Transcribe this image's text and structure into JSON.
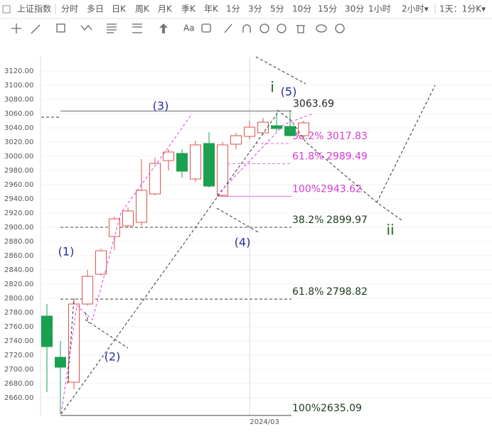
{
  "toolbar": {
    "symbol": "上证指数",
    "periods": [
      "分时",
      "多日",
      "日K",
      "周K",
      "月K",
      "季K",
      "年K",
      "1分",
      "3分",
      "5分",
      "10分",
      "15分",
      "30分",
      "1小时",
      "2小时▾"
    ],
    "active": "日K",
    "interval": "1天：1分K▾",
    "text_tool": "Aa"
  },
  "chart_data": {
    "type": "candlestick",
    "categories": [
      null,
      null,
      null,
      null,
      null,
      null,
      null,
      null,
      null,
      null,
      null,
      null,
      null,
      null,
      null,
      "2024/03",
      null,
      null,
      null,
      null
    ],
    "open": [
      2775,
      2717,
      2682,
      2792,
      2834,
      2887,
      2902,
      2907,
      2947,
      2994,
      3004,
      2968,
      3018,
      2945,
      3017,
      3028,
      3033,
      3043,
      3042,
      3029
    ],
    "close": [
      2732,
      2703,
      2792,
      2831,
      2867,
      2912,
      2923,
      2952,
      2990,
      3006,
      2979,
      3016,
      2958,
      3016,
      3029,
      3041,
      3048,
      3039,
      3029,
      3047
    ],
    "high": [
      2792,
      2740,
      2800,
      2840,
      2870,
      2915,
      2928,
      2996,
      2998,
      3010,
      3010,
      3022,
      3034,
      3020,
      3033,
      3050,
      3054,
      3062,
      3065,
      3050
    ],
    "low": [
      2668,
      2637,
      2672,
      2790,
      2832,
      2868,
      2900,
      2902,
      2945,
      2980,
      2970,
      2964,
      2956,
      2943,
      3010,
      3024,
      3030,
      3035,
      3028,
      3024
    ],
    "up_color": "#d9534f",
    "down_color": "#1aa050",
    "ylim": [
      2635,
      3140
    ],
    "yticks": [
      {
        "value": 2660,
        "label": "2660.00"
      },
      {
        "value": 2680,
        "label": "2680.00"
      },
      {
        "value": 2700,
        "label": "2700.00"
      },
      {
        "value": 2720,
        "label": "2720.00"
      },
      {
        "value": 2740,
        "label": "2740.00"
      },
      {
        "value": 2760,
        "label": "2760.00"
      },
      {
        "value": 2780,
        "label": "2780.00"
      },
      {
        "value": 2800,
        "label": "2800.00"
      },
      {
        "value": 2820,
        "label": "2820.00"
      },
      {
        "value": 2840,
        "label": "2840.00"
      },
      {
        "value": 2860,
        "label": "2860.00"
      },
      {
        "value": 2880,
        "label": "2880.00"
      },
      {
        "value": 2900,
        "label": "2900.00"
      },
      {
        "value": 2920,
        "label": "2920.00"
      },
      {
        "value": 2940,
        "label": "2940.00"
      },
      {
        "value": 2960,
        "label": "2960.00"
      },
      {
        "value": 2980,
        "label": "2980.00"
      },
      {
        "value": 3000,
        "label": "3000.00"
      },
      {
        "value": 3020,
        "label": "3020.00"
      },
      {
        "value": 3040,
        "label": "3040.00"
      },
      {
        "value": 3060,
        "label": "3060.00"
      },
      {
        "value": 3080,
        "label": "3080.00"
      },
      {
        "value": 3100,
        "label": "3100.00"
      },
      {
        "value": 3120,
        "label": "3120.00"
      }
    ],
    "levels": [
      {
        "ratio": null,
        "value": 3063.69,
        "color": "#222222",
        "line": "#666666"
      },
      {
        "ratio": "38.2%",
        "value": 3017.83,
        "color": "#d63ad6",
        "line": "#e070e0"
      },
      {
        "ratio": "61.8%",
        "value": 2989.49,
        "color": "#d63ad6",
        "line": "#e070e0"
      },
      {
        "ratio": "100%",
        "value": 2943.62,
        "color": "#d63ad6",
        "line": "#e070e0"
      },
      {
        "ratio": "38.2%",
        "value": 2899.97,
        "color": "#1c3a1c",
        "line": "#3a4a3a"
      },
      {
        "ratio": "61.8%",
        "value": 2798.82,
        "color": "#1c3a1c",
        "line": "#3a4a3a"
      },
      {
        "ratio": "100%",
        "value": 2635.09,
        "color": "#1c3a1c",
        "line": "#3a4a3a"
      }
    ],
    "waves": [
      "(1)",
      "(2)",
      "(3)",
      "(4)",
      "(5)",
      "i",
      "ii"
    ]
  }
}
